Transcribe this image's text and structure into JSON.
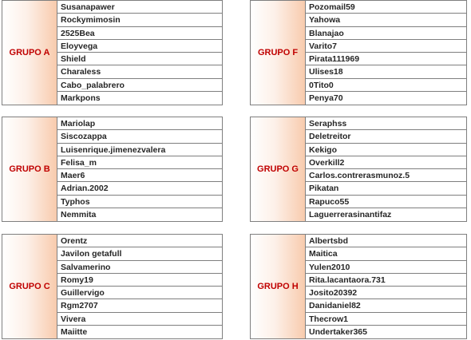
{
  "groups": [
    {
      "label": "GRUPO A",
      "members": [
        "Susanapawer",
        "Rockymimosin",
        "2525Bea",
        "Eloyvega",
        "Shield",
        "Charaless",
        "Cabo_palabrero",
        "Markpons"
      ]
    },
    {
      "label": "GRUPO F",
      "members": [
        "Pozomail59",
        "Yahowa",
        "Blanajao",
        "Varito7",
        "Pirata111969",
        "Ulises18",
        "0Tito0",
        "Penya70"
      ]
    },
    {
      "label": "GRUPO B",
      "members": [
        "Mariolap",
        "Siscozappa",
        "Luisenrique.jimenezvalera",
        "Felisa_m",
        "Maer6",
        "Adrian.2002",
        "Typhos",
        "Nemmita"
      ]
    },
    {
      "label": "GRUPO G",
      "members": [
        "Seraphss",
        "Deletreitor",
        "Kekigo",
        "Overkill2",
        "Carlos.contrerasmunoz.5",
        "Pikatan",
        "Rapuco55",
        "Laguerrerasinantifaz"
      ]
    },
    {
      "label": "GRUPO C",
      "members": [
        "Orentz",
        "Javilon getafull",
        "Salvamerino",
        "Romy19",
        "Guillervigo",
        "Rgm2707",
        "Vivera",
        "Maiitte"
      ]
    },
    {
      "label": "GRUPO H",
      "members": [
        "Albertsbd",
        "Maitica",
        "Yulen2010",
        "Rita.lacantaora.731",
        "Josito20392",
        "Danidaniel82",
        "Thecrow1",
        "Undertaker365"
      ]
    }
  ]
}
